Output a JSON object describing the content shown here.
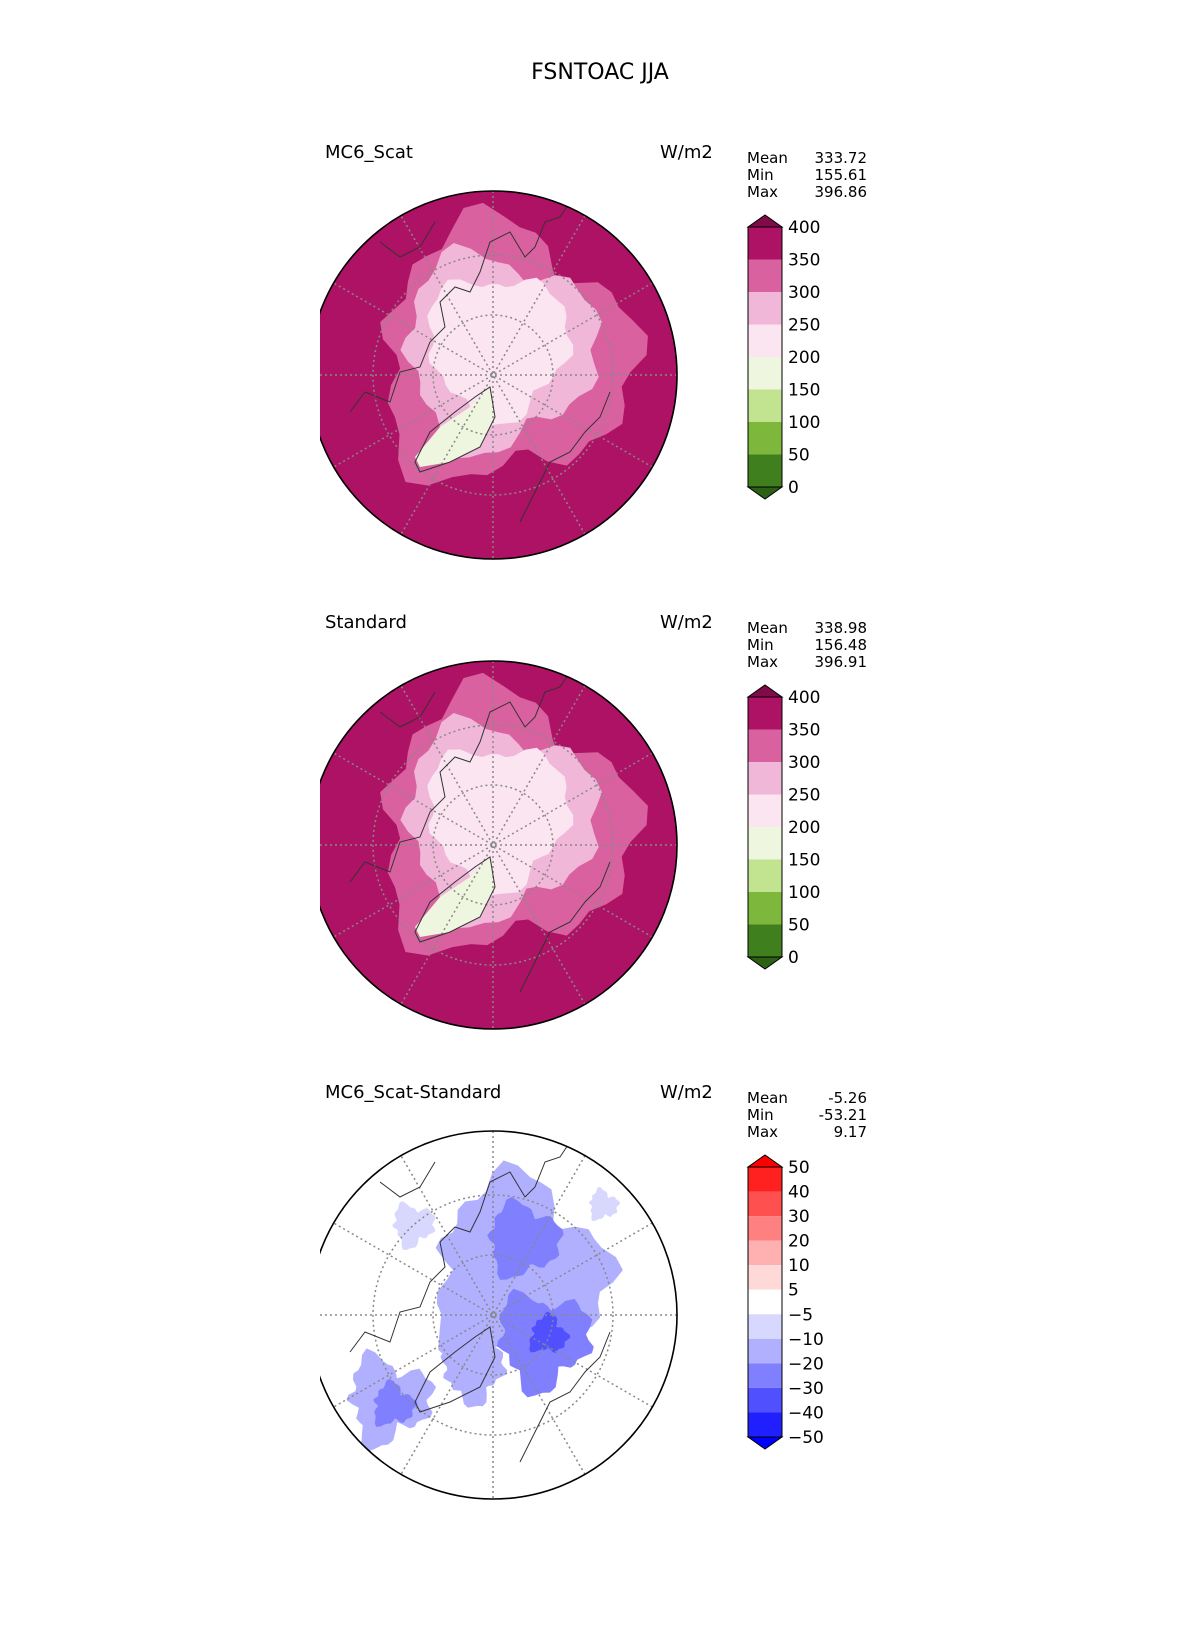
{
  "title": "FSNTOAC JJA",
  "panels": [
    {
      "title": "MC6_Scat",
      "units": "W/m2",
      "stats": [
        {
          "label": "Mean",
          "value": "333.72"
        },
        {
          "label": "Min",
          "value": "155.61"
        },
        {
          "label": "Max",
          "value": "396.86"
        }
      ],
      "map_kind": "field",
      "colorbar": {
        "ticks": [
          "400",
          "350",
          "300",
          "250",
          "200",
          "150",
          "100",
          "50",
          "0"
        ],
        "colors": [
          "#ae1265",
          "#d9619f",
          "#f0b7d9",
          "#fbe5f0",
          "#eef6e0",
          "#c2e390",
          "#7db83d",
          "#3f7f1d"
        ],
        "extend_top": "#7f0b48",
        "extend_bottom": "#2c6115"
      }
    },
    {
      "title": "Standard",
      "units": "W/m2",
      "stats": [
        {
          "label": "Mean",
          "value": "338.98"
        },
        {
          "label": "Min",
          "value": "156.48"
        },
        {
          "label": "Max",
          "value": "396.91"
        }
      ],
      "map_kind": "field",
      "colorbar": {
        "ticks": [
          "400",
          "350",
          "300",
          "250",
          "200",
          "150",
          "100",
          "50",
          "0"
        ],
        "colors": [
          "#ae1265",
          "#d9619f",
          "#f0b7d9",
          "#fbe5f0",
          "#eef6e0",
          "#c2e390",
          "#7db83d",
          "#3f7f1d"
        ],
        "extend_top": "#7f0b48",
        "extend_bottom": "#2c6115"
      }
    },
    {
      "title": "MC6_Scat-Standard",
      "units": "W/m2",
      "stats": [
        {
          "label": "Mean",
          "value": "-5.26"
        },
        {
          "label": "Min",
          "value": "-53.21"
        },
        {
          "label": "Max",
          "value": "9.17"
        }
      ],
      "map_kind": "diff",
      "colorbar": {
        "ticks": [
          "50",
          "40",
          "30",
          "20",
          "10",
          "5",
          "−5",
          "−10",
          "−20",
          "−30",
          "−40",
          "−50"
        ],
        "colors": [
          "#ff2020",
          "#ff5050",
          "#ff8080",
          "#ffb0b0",
          "#ffd8d8",
          "#ffffff",
          "#d8d8ff",
          "#b0b0ff",
          "#8080ff",
          "#5050ff",
          "#2020ff"
        ],
        "extend_top": "#ff0000",
        "extend_bottom": "#0000ff"
      }
    }
  ]
}
